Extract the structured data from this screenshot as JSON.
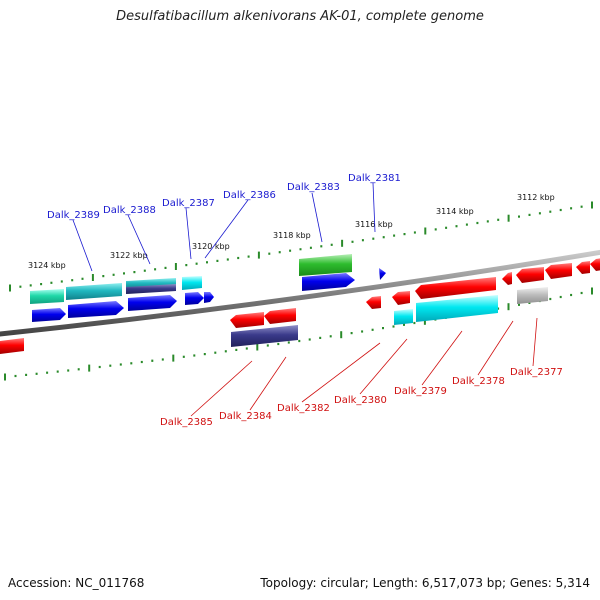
{
  "title": "Desulfatibacillum alkenivorans AK-01, complete genome",
  "footer": {
    "accession": "Accession: NC_011768",
    "summary": "Topology: circular; Length: 6,517,073 bp; Genes: 5,314"
  },
  "colors": {
    "forward_label": "#1a1ad0",
    "reverse_label": "#d01010",
    "backbone": "#808080",
    "tick": "#2a8a2a"
  },
  "scale_labels": [
    "3124 kbp",
    "3122 kbp",
    "3120 kbp",
    "3118 kbp",
    "3116 kbp",
    "3114 kbp",
    "3112 kbp"
  ],
  "top_gene_labels": [
    "Dalk_2389",
    "Dalk_2388",
    "Dalk_2387",
    "Dalk_2386",
    "Dalk_2383",
    "Dalk_2381"
  ],
  "bottom_gene_labels": [
    "Dalk_2385",
    "Dalk_2384",
    "Dalk_2382",
    "Dalk_2380",
    "Dalk_2379",
    "Dalk_2378",
    "Dalk_2377"
  ]
}
